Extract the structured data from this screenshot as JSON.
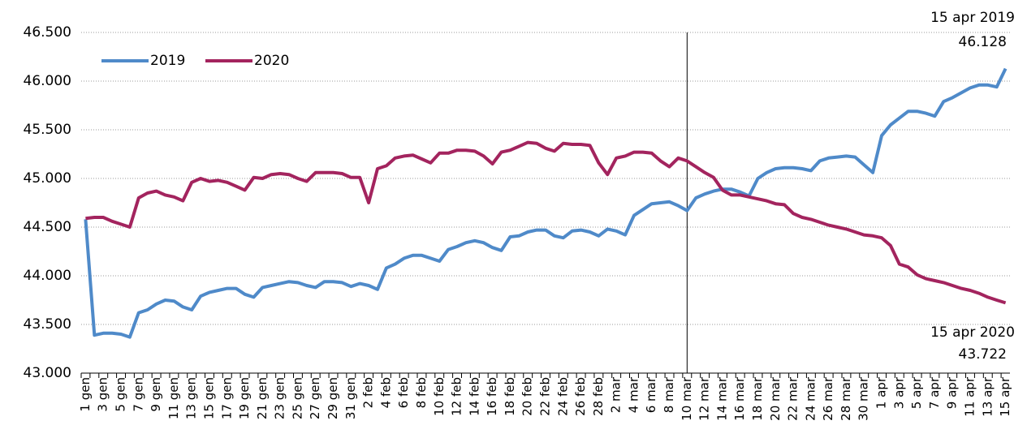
{
  "chart_data": {
    "type": "line",
    "categories": [
      "1 gen",
      null,
      "3 gen",
      null,
      "5 gen",
      null,
      "7 gen",
      null,
      "9 gen",
      null,
      "11 gen",
      null,
      "13 gen",
      null,
      "15 gen",
      null,
      "17 gen",
      null,
      "19 gen",
      null,
      "21 gen",
      null,
      "23 gen",
      null,
      "25 gen",
      null,
      "27 gen",
      null,
      "29 gen",
      null,
      "31 gen",
      null,
      "2 feb",
      null,
      "4 feb",
      null,
      "6 feb",
      null,
      "8 feb",
      null,
      "10 feb",
      null,
      "12 feb",
      null,
      "14 feb",
      null,
      "16 feb",
      null,
      "18 feb",
      null,
      "20 feb",
      null,
      "22 feb",
      null,
      "24 feb",
      null,
      "26 feb",
      null,
      "28 feb",
      null,
      "2 mar",
      null,
      "4 mar",
      null,
      "6 mar",
      null,
      "8 mar",
      null,
      "10 mar",
      null,
      "12 mar",
      null,
      "14 mar",
      null,
      "16 mar",
      null,
      "18 mar",
      null,
      "20 mar",
      null,
      "22 mar",
      null,
      "24 mar",
      null,
      "26 mar",
      null,
      "28 mar",
      null,
      "30 mar",
      null,
      "1 apr",
      null,
      "3 apr",
      null,
      "5 apr",
      null,
      "7 apr",
      null,
      "9 apr",
      null,
      "11 apr",
      null,
      "13 apr",
      null,
      "15 apr"
    ],
    "series": [
      {
        "name": "2019",
        "color": "#4f8ac9",
        "values": [
          44580,
          43390,
          43410,
          43410,
          43400,
          43370,
          43620,
          43650,
          43710,
          43750,
          43740,
          43680,
          43650,
          43790,
          43830,
          43850,
          43870,
          43870,
          43810,
          43780,
          43880,
          43900,
          43920,
          43940,
          43930,
          43900,
          43880,
          43940,
          43940,
          43930,
          43890,
          43920,
          43900,
          43860,
          44080,
          44120,
          44180,
          44210,
          44210,
          44180,
          44150,
          44270,
          44300,
          44340,
          44360,
          44340,
          44290,
          44260,
          44400,
          44410,
          44450,
          44470,
          44470,
          44410,
          44390,
          44460,
          44470,
          44450,
          44410,
          44480,
          44460,
          44420,
          44620,
          44680,
          44740,
          44750,
          44760,
          44720,
          44670,
          44800,
          44840,
          44870,
          44890,
          44890,
          44860,
          44820,
          45000,
          45060,
          45100,
          45110,
          45110,
          45100,
          45080,
          45180,
          45210,
          45220,
          45230,
          45220,
          45140,
          45060,
          45440,
          45550,
          45620,
          45690,
          45690,
          45670,
          45640,
          45790,
          45830,
          45880,
          45930,
          45960,
          45960,
          45940,
          46128
        ]
      },
      {
        "name": "2020",
        "color": "#a3245e",
        "values": [
          44590,
          44600,
          44600,
          44560,
          44530,
          44500,
          44800,
          44850,
          44870,
          44830,
          44810,
          44770,
          44960,
          45000,
          44970,
          44980,
          44960,
          44920,
          44880,
          45010,
          45000,
          45040,
          45050,
          45040,
          45000,
          44970,
          45060,
          45060,
          45060,
          45050,
          45010,
          45010,
          44750,
          45100,
          45130,
          45210,
          45230,
          45240,
          45200,
          45160,
          45260,
          45260,
          45290,
          45290,
          45280,
          45230,
          45150,
          45270,
          45290,
          45330,
          45370,
          45360,
          45310,
          45280,
          45360,
          45350,
          45350,
          45340,
          45160,
          45040,
          45210,
          45230,
          45270,
          45270,
          45260,
          45180,
          45120,
          45210,
          45180,
          45120,
          45060,
          45010,
          44880,
          44830,
          44830,
          44810,
          44790,
          44770,
          44740,
          44730,
          44640,
          44600,
          44580,
          44550,
          44520,
          44500,
          44480,
          44450,
          44420,
          44410,
          44390,
          44310,
          44120,
          44090,
          44010,
          43970,
          43950,
          43930,
          43900,
          43870,
          43850,
          43820,
          43780,
          43750,
          43722
        ]
      }
    ],
    "ylim": [
      43000,
      46500
    ],
    "yticks": [
      {
        "value": 43000,
        "label": "43.000"
      },
      {
        "value": 43500,
        "label": "43.500"
      },
      {
        "value": 44000,
        "label": "44.000"
      },
      {
        "value": 44500,
        "label": "44.500"
      },
      {
        "value": 45000,
        "label": "45.000"
      },
      {
        "value": 45500,
        "label": "45.500"
      },
      {
        "value": 46000,
        "label": "46.000"
      },
      {
        "value": 46500,
        "label": "46.500"
      }
    ],
    "grid": true,
    "legend": "top-left",
    "vertical_line_at": "10 mar",
    "annotations": [
      "15 apr 2019",
      "46.128",
      "15 apr 2020",
      "43.722"
    ]
  }
}
